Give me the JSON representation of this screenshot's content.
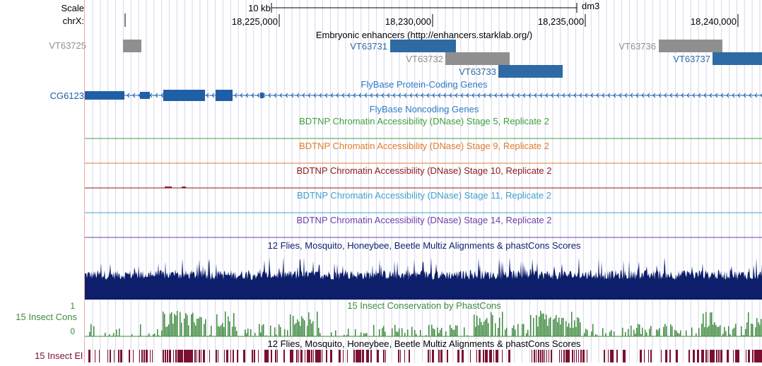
{
  "left_labels": {
    "scale": "Scale",
    "chrom": "chrX:",
    "vt_left": "VT63725",
    "gene": "CG6123",
    "cons_track": "15 Insect Cons",
    "el_track": "15 Insect El",
    "axis_top": "1",
    "axis_bottom": "0"
  },
  "ruler": {
    "scale_text": "10 kb",
    "assembly": "dm3",
    "positions": [
      "18,225,000",
      "18,230,000",
      "18,235,000",
      "18,240,000"
    ]
  },
  "tracks": {
    "enhancers_title": "Embryonic enhancers (http://enhancers.starklab.org/)",
    "enhancers": [
      {
        "name": "VT63731",
        "color": "#2e6aa4"
      },
      {
        "name": "VT63732",
        "color": "#8f8f8f"
      },
      {
        "name": "VT63733",
        "color": "#2e6aa4"
      },
      {
        "name": "VT63736",
        "color": "#8f8f8f"
      },
      {
        "name": "VT63737",
        "color": "#2e6aa4"
      }
    ],
    "protein_genes_title": "FlyBase Protein-Coding Genes",
    "noncoding_title": "FlyBase Noncoding Genes",
    "dnase": [
      {
        "title": "BDTNP Chromatin Accessibility (DNase) Stage 5, Replicate 2",
        "color": "#3f9e3f"
      },
      {
        "title": "BDTNP Chromatin Accessibility (DNase) Stage 9, Replicate 2",
        "color": "#e07b2b"
      },
      {
        "title": "BDTNP Chromatin Accessibility (DNase) Stage 10, Replicate 2",
        "color": "#8b1a1a"
      },
      {
        "title": "BDTNP Chromatin Accessibility (DNase) Stage 11, Replicate 2",
        "color": "#3fa1cc"
      },
      {
        "title": "BDTNP Chromatin Accessibility (DNase) Stage 14, Replicate 2",
        "color": "#6e3fa8"
      }
    ],
    "multiz_title": "12 Flies, Mosquito, Honeybee, Beetle Multiz Alignments & phastCons Scores",
    "cons_title": "15 Insect Conservation by PhastCons",
    "el_title": "12 Flies, Mosquito, Honeybee, Beetle Multiz Alignments & phastCons Scores"
  },
  "colors": {
    "gene": "#1f5fa8",
    "multiz": "#0d1f6b",
    "cons": "#3f8a3f",
    "elements": "#7a1030",
    "gridline": "#d6d6f0",
    "enh_label_blue": "#2e6aa4",
    "enh_label_gray": "#8f8f8f"
  }
}
